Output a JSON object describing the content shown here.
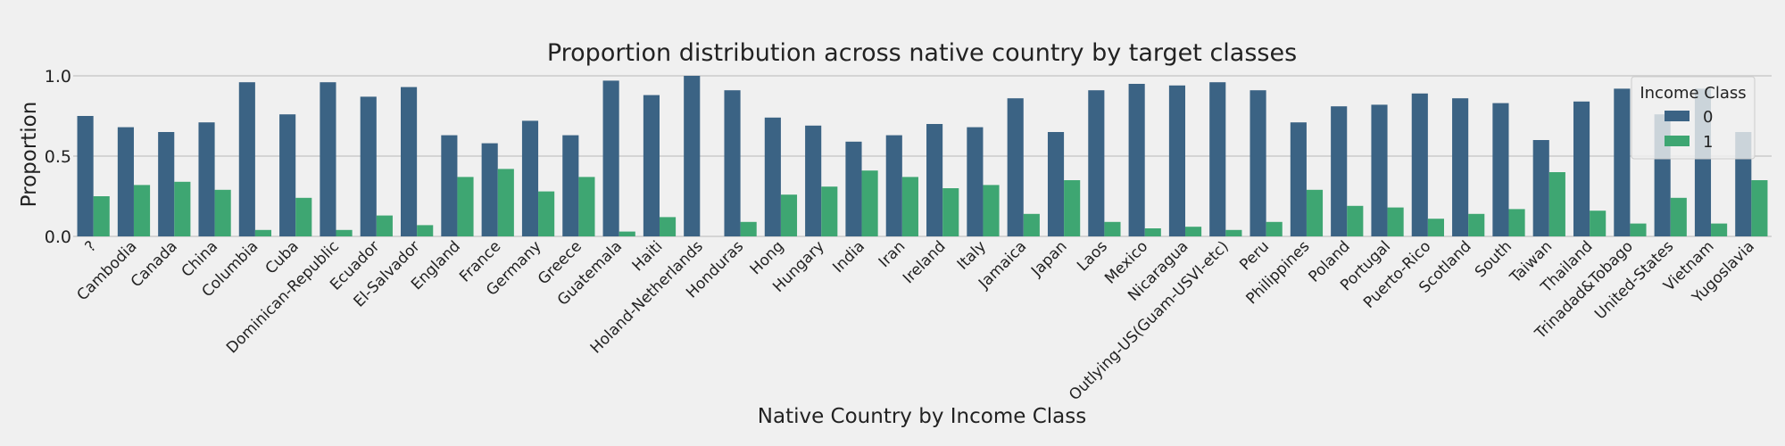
{
  "chart_data": {
    "type": "bar",
    "title": "Proportion distribution across native country by target classes",
    "xlabel": "Native Country by Income Class",
    "ylabel": "Proportion",
    "ylim": [
      0,
      1.0
    ],
    "yticks": [
      "0.0",
      "0.5",
      "1.0"
    ],
    "grid": true,
    "legend": {
      "title": "Income Class",
      "placement": "top-right"
    },
    "categories": [
      "?",
      "Cambodia",
      "Canada",
      "China",
      "Columbia",
      "Cuba",
      "Dominican-Republic",
      "Ecuador",
      "El-Salvador",
      "England",
      "France",
      "Germany",
      "Greece",
      "Guatemala",
      "Haiti",
      "Holand-Netherlands",
      "Honduras",
      "Hong",
      "Hungary",
      "India",
      "Iran",
      "Ireland",
      "Italy",
      "Jamaica",
      "Japan",
      "Laos",
      "Mexico",
      "Nicaragua",
      "Outlying-US(Guam-USVI-etc)",
      "Peru",
      "Philippines",
      "Poland",
      "Portugal",
      "Puerto-Rico",
      "Scotland",
      "South",
      "Taiwan",
      "Thailand",
      "Trinadad&Tobago",
      "United-States",
      "Vietnam",
      "Yugoslavia"
    ],
    "series": [
      {
        "name": "0",
        "color": "#3b6384",
        "values": [
          0.75,
          0.68,
          0.65,
          0.71,
          0.96,
          0.76,
          0.96,
          0.87,
          0.93,
          0.63,
          0.58,
          0.72,
          0.63,
          0.97,
          0.88,
          1.0,
          0.91,
          0.74,
          0.69,
          0.59,
          0.63,
          0.7,
          0.68,
          0.86,
          0.65,
          0.91,
          0.95,
          0.94,
          0.96,
          0.91,
          0.71,
          0.81,
          0.82,
          0.89,
          0.86,
          0.83,
          0.6,
          0.84,
          0.92,
          0.76,
          0.92,
          0.65
        ]
      },
      {
        "name": "1",
        "color": "#3ea672",
        "values": [
          0.25,
          0.32,
          0.34,
          0.29,
          0.04,
          0.24,
          0.04,
          0.13,
          0.07,
          0.37,
          0.42,
          0.28,
          0.37,
          0.03,
          0.12,
          0.0,
          0.09,
          0.26,
          0.31,
          0.41,
          0.37,
          0.3,
          0.32,
          0.14,
          0.35,
          0.09,
          0.05,
          0.06,
          0.04,
          0.09,
          0.29,
          0.19,
          0.18,
          0.11,
          0.14,
          0.17,
          0.4,
          0.16,
          0.08,
          0.24,
          0.08,
          0.35
        ]
      }
    ]
  }
}
